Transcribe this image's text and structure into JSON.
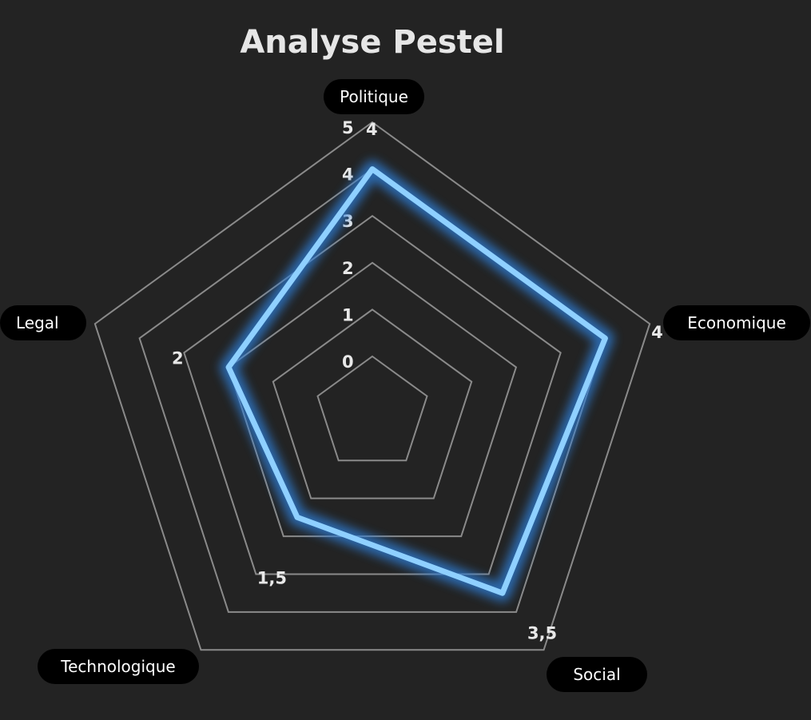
{
  "chart_data": {
    "type": "radar",
    "title": "Analyse Pestel",
    "axes": [
      "Politique",
      "Economique",
      "Social",
      "Technologique",
      "Legal"
    ],
    "scale_ticks": [
      "0",
      "1",
      "2",
      "3",
      "4",
      "5"
    ],
    "rlim": [
      0,
      5
    ],
    "series": [
      {
        "values": [
          4,
          4,
          3.5,
          1.5,
          2
        ],
        "value_labels": [
          "4",
          "4",
          "3,5",
          "1,5",
          "2"
        ]
      }
    ],
    "grid": true,
    "colors": {
      "background": "#232323",
      "grid": "#8a8a8a",
      "series": "#8fd0ff",
      "glow": "#2f7fd8",
      "pill_bg": "#000000",
      "pill_text": "#ffffff"
    }
  }
}
